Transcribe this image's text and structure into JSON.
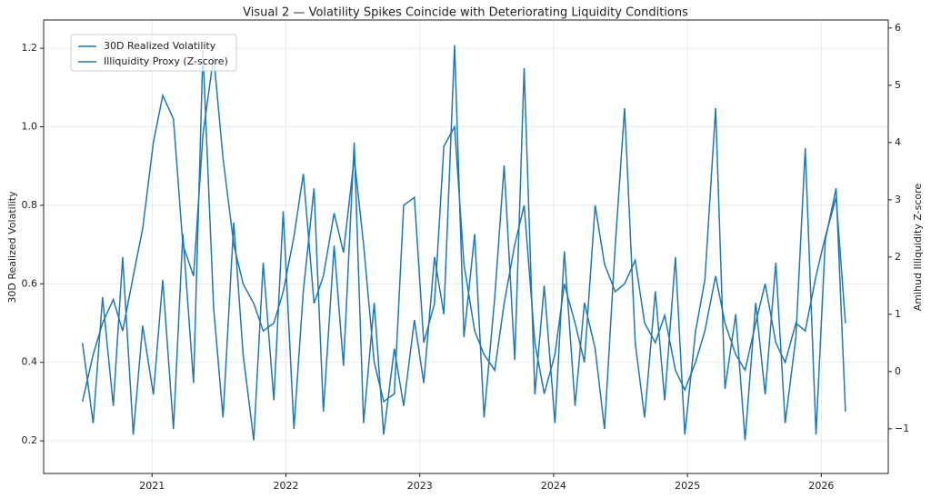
{
  "chart_data": {
    "type": "line",
    "title": "Visual 2 — Volatility Spikes Coincide with Deteriorating Liquidity Conditions",
    "ylabel": "30D Realized Volatility",
    "y2label": "Amihud Illiquidity Z-score",
    "x": [
      2020.48,
      2020.56,
      2020.63,
      2020.71,
      2020.78,
      2020.86,
      2020.93,
      2021.01,
      2021.08,
      2021.16,
      2021.23,
      2021.31,
      2021.38,
      2021.46,
      2021.53,
      2021.61,
      2021.68,
      2021.76,
      2021.83,
      2021.91,
      2021.98,
      2022.06,
      2022.13,
      2022.21,
      2022.28,
      2022.36,
      2022.43,
      2022.51,
      2022.58,
      2022.66,
      2022.73,
      2022.81,
      2022.88,
      2022.96,
      2023.03,
      2023.11,
      2023.18,
      2023.26,
      2023.33,
      2023.41,
      2023.48,
      2023.56,
      2023.63,
      2023.71,
      2023.78,
      2023.86,
      2023.93,
      2024.01,
      2024.08,
      2024.16,
      2024.23,
      2024.31,
      2024.38,
      2024.46,
      2024.53,
      2024.61,
      2024.68,
      2024.76,
      2024.83,
      2024.91,
      2024.98,
      2025.06,
      2025.13,
      2025.21,
      2025.28,
      2025.36,
      2025.43,
      2025.51,
      2025.58,
      2025.66,
      2025.73,
      2025.81,
      2025.88,
      2025.96,
      2026.03,
      2026.11,
      2026.18
    ],
    "series": [
      {
        "name": "30D Realized Volatility",
        "color": "#1f77b4",
        "values": [
          0.3,
          0.42,
          0.5,
          0.56,
          0.48,
          0.62,
          0.74,
          0.96,
          1.08,
          1.02,
          0.7,
          0.62,
          0.98,
          1.18,
          0.92,
          0.7,
          0.6,
          0.55,
          0.48,
          0.5,
          0.58,
          0.72,
          0.88,
          0.55,
          0.62,
          0.78,
          0.68,
          0.92,
          0.7,
          0.4,
          0.3,
          0.32,
          0.8,
          0.82,
          0.45,
          0.55,
          0.95,
          1.0,
          0.65,
          0.48,
          0.42,
          0.38,
          0.55,
          0.7,
          0.8,
          0.45,
          0.32,
          0.42,
          0.6,
          0.5,
          0.4,
          0.8,
          0.65,
          0.58,
          0.6,
          0.66,
          0.5,
          0.45,
          0.52,
          0.38,
          0.33,
          0.4,
          0.48,
          0.62,
          0.5,
          0.42,
          0.38,
          0.5,
          0.6,
          0.45,
          0.4,
          0.5,
          0.48,
          0.62,
          0.72,
          0.82,
          0.5
        ]
      },
      {
        "name": "Illiquidity Proxy (Z-score)",
        "color": "#1f77b4",
        "axis": "y2",
        "values": [
          0.5,
          -0.9,
          1.3,
          -0.6,
          2.0,
          -1.1,
          0.8,
          -0.4,
          1.6,
          -1.0,
          2.4,
          -0.2,
          5.6,
          1.1,
          -0.8,
          2.6,
          0.3,
          -1.2,
          1.9,
          -0.5,
          2.8,
          -1.0,
          1.4,
          3.2,
          -0.7,
          2.2,
          0.1,
          4.0,
          -0.9,
          1.2,
          -1.1,
          0.4,
          -0.6,
          0.9,
          -0.2,
          2.0,
          1.0,
          5.7,
          0.6,
          2.4,
          -0.8,
          1.3,
          3.6,
          0.2,
          5.3,
          -0.4,
          1.5,
          -0.9,
          2.1,
          -0.6,
          1.2,
          0.4,
          -1.0,
          2.2,
          4.6,
          0.5,
          -0.8,
          1.4,
          -0.5,
          2.0,
          -1.1,
          0.7,
          1.6,
          4.6,
          -0.3,
          1.0,
          -1.2,
          1.2,
          -0.4,
          1.9,
          -0.9,
          0.6,
          3.9,
          -1.1,
          2.3,
          3.2,
          -0.7
        ]
      }
    ],
    "xlim": [
      2020.19,
      2026.5
    ],
    "xticks": [
      2021,
      2022,
      2023,
      2024,
      2025,
      2026
    ],
    "ylim": [
      0.117,
      1.272
    ],
    "yticks": [
      0.2,
      0.4,
      0.6,
      0.8,
      {
        "value": 1,
        "label": "1.0"
      },
      1.2
    ],
    "y2lim": [
      -1.78,
      6.14
    ],
    "y2ticks": [
      {
        "value": -1,
        "label": "−1"
      },
      0,
      1,
      2,
      3,
      4,
      5,
      6
    ],
    "grid": true,
    "legend": "upper left"
  }
}
